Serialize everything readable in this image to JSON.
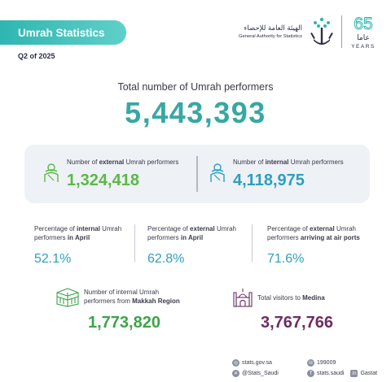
{
  "header": {
    "title": "Umrah Statistics",
    "quarter": "Q2 of 2025",
    "org_name_ar": "الهيئة العامة للإحصاء",
    "org_name_en": "General Authority for Statistics",
    "anniv_number": "65",
    "anniv_ar": "عاما",
    "anniv_en": "YEARS"
  },
  "total": {
    "label": "Total number of Umrah performers",
    "value": "5,443,393"
  },
  "card": {
    "external": {
      "label_pre": "Number of ",
      "label_bold": "external",
      "label_post": " Umrah performers",
      "value": "1,324,418"
    },
    "internal": {
      "label_pre": "Number of ",
      "label_bold": "internal",
      "label_post": " Umrah performers",
      "value": "4,118,975"
    }
  },
  "percentages": [
    {
      "line1_pre": "Percentage of ",
      "line1_bold": "internal",
      "line1_post": " Umrah",
      "line2_pre": "performers ",
      "line2_bold": "in April",
      "value": "52.1%"
    },
    {
      "line1_pre": "Percentage of ",
      "line1_bold": "external",
      "line1_post": " Umrah",
      "line2_pre": "performers ",
      "line2_bold": "in April",
      "value": "62.8%"
    },
    {
      "line1_pre": "Percentage of ",
      "line1_bold": "external",
      "line1_post": " Umrah",
      "line2_pre": "performers ",
      "line2_bold": "arriving at air ports",
      "value": "71.6%"
    }
  ],
  "makkah": {
    "line1": "Number of internal Umrah",
    "line2_pre": "performers from ",
    "line2_bold": "Makkah Region",
    "value": "1,773,820"
  },
  "medina": {
    "label_pre": "Total visitors to ",
    "label_bold": "Medina",
    "value": "3,767,766"
  },
  "footer": {
    "website": "stats.gov.sa",
    "phone": "199009",
    "twitter": "@Stats_Saudi",
    "facebook": "stats.saudi",
    "other": "Gastat"
  },
  "colors": {
    "accent_teal": "#36a8a3",
    "external_green": "#5cb946",
    "internal_blue": "#2e9fbf",
    "makkah_green": "#3ea34b",
    "medina_purple": "#6c2d63"
  }
}
